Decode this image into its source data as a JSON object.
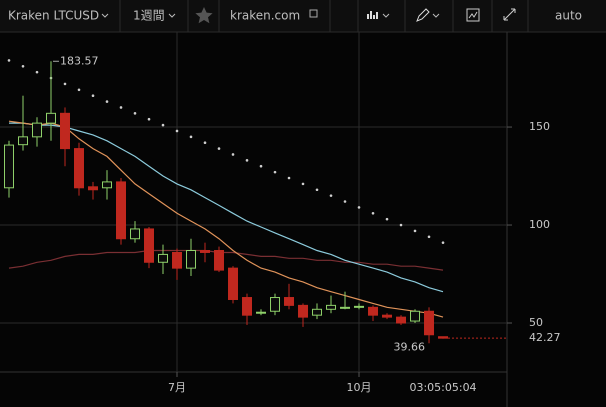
{
  "toolbar": {
    "symbol": "Kraken LTCUSD",
    "interval": "1週間",
    "source": "kraken.com",
    "scale": "auto"
  },
  "chart_data": {
    "type": "candlestick",
    "open": [
      119,
      141,
      145,
      152,
      157,
      139,
      119.5,
      119,
      122,
      93,
      98,
      81,
      86,
      78,
      87,
      87,
      78,
      63,
      55,
      56,
      63,
      59,
      54,
      57,
      58,
      58,
      58,
      54,
      53,
      51,
      56,
      43
    ],
    "high": [
      143,
      166,
      155,
      183.57,
      160,
      142,
      122,
      128,
      124,
      102,
      99,
      90,
      88,
      93,
      91,
      89,
      79,
      65,
      57,
      65,
      70,
      60,
      60,
      64,
      66,
      60,
      59,
      55,
      54,
      57,
      58,
      43
    ],
    "low": [
      114,
      138,
      140,
      143,
      130,
      115,
      113,
      113,
      90,
      91,
      78,
      75,
      72,
      74,
      81,
      76,
      60,
      49,
      54,
      54,
      57,
      48,
      52,
      55,
      57,
      57,
      51,
      52,
      49,
      50,
      39.66,
      42
    ],
    "close": [
      140.8,
      145,
      152,
      157,
      139,
      119,
      118,
      122,
      93,
      98,
      81,
      85,
      78,
      87,
      86,
      77,
      62,
      54,
      55.5,
      63,
      59,
      53,
      57,
      59,
      58,
      58.5,
      54,
      53,
      50,
      56,
      44,
      42.27
    ],
    "up_color": "#8fd16a",
    "down_color": "#c0281f",
    "overlays": [
      {
        "type": "line",
        "color": "#7a2f33",
        "values": [
          78,
          79,
          81,
          82,
          84,
          85,
          85,
          86,
          86,
          86,
          87,
          87,
          87,
          87,
          87,
          86,
          86,
          85,
          84,
          84,
          83,
          83,
          82,
          82,
          81,
          81,
          80,
          80,
          79,
          79,
          78,
          77
        ]
      },
      {
        "type": "line",
        "color": "#8ccbdc",
        "values": [
          152,
          152,
          151,
          151,
          150,
          148,
          146,
          143,
          139,
          135,
          130,
          125,
          121,
          118,
          114,
          110,
          106,
          102,
          99,
          96,
          93,
          90,
          87,
          85,
          82,
          80,
          78,
          76,
          73,
          71,
          68,
          66
        ]
      },
      {
        "type": "line",
        "color": "#e0935a",
        "values": [
          153,
          152,
          151,
          152,
          150,
          144,
          139,
          135,
          128,
          121,
          116,
          111,
          106,
          102,
          98,
          93,
          87,
          82,
          78,
          76,
          73,
          71,
          68,
          66,
          64,
          62,
          60,
          58,
          57,
          56,
          55,
          53
        ]
      },
      {
        "type": "dots",
        "color": "#d0d0d0",
        "values": [
          184,
          181,
          178,
          175,
          172,
          169,
          166,
          163,
          160,
          157,
          154,
          151,
          148,
          145,
          142,
          139,
          136,
          133,
          130,
          127,
          124,
          121,
          118,
          115,
          112,
          109,
          106,
          103,
          100,
          97,
          94,
          91
        ]
      }
    ],
    "ylim": [
      25,
      198.5
    ],
    "yticks": [
      50,
      100,
      150
    ],
    "xlim": [
      -0.643,
      35.57
    ],
    "xticks": [
      {
        "value": 12,
        "label": "7月"
      },
      {
        "value": 25,
        "label": "10月"
      }
    ],
    "grid": true,
    "countdown": "03:05:05:04"
  }
}
